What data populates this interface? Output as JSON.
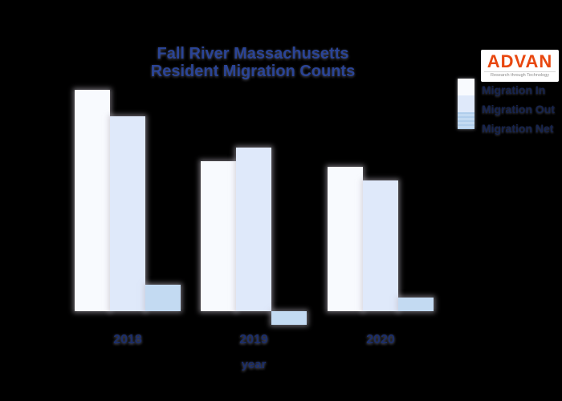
{
  "page": {
    "background_color": "#000000"
  },
  "header": {
    "title_line1": "Fall River Massachusetts",
    "title_line2": "Resident Migration Counts",
    "title_color": "#2a4496"
  },
  "logo": {
    "name": "ADVAN",
    "tagline": "Research through Technology",
    "wordmark_color": "#e8470f",
    "background_color": "#ffffff",
    "tagline_color": "#8a8a8a"
  },
  "legend": {
    "text_color": "#16244f",
    "entries": [
      {
        "label": "Migration In",
        "swatch_color": "#f8fafe"
      },
      {
        "label": "Migration Out",
        "swatch_color": "#dfe9fa"
      },
      {
        "label": "Migration Net",
        "swatch_color": "#c3daf2"
      }
    ]
  },
  "chart_data": {
    "type": "bar",
    "title": "Fall River Massachusetts Resident Migration Counts",
    "categories": [
      "2018",
      "2019",
      "2020"
    ],
    "series": [
      {
        "name": "Migration In",
        "color": "#f8fafe",
        "values": [
          2760,
          1870,
          1800
        ]
      },
      {
        "name": "Migration Out",
        "color": "#dfe9fa",
        "values": [
          2430,
          2040,
          1630
        ]
      },
      {
        "name": "Migration Net",
        "color": "#c3daf2",
        "values": [
          330,
          -170,
          170
        ]
      }
    ],
    "xlabel": "year",
    "ylabel": "",
    "ylim": [
      -300,
      2900
    ],
    "grid": false,
    "y_axis_visible": false,
    "legend_position": "upper right",
    "axis_text_color": "#1b2e6b"
  }
}
